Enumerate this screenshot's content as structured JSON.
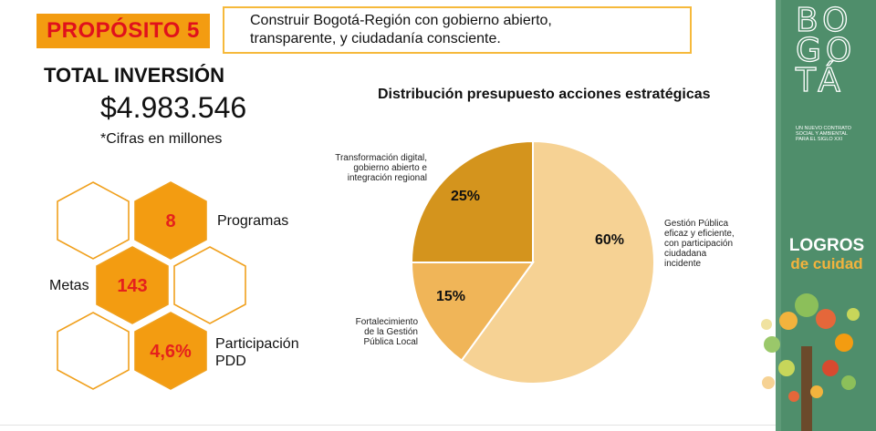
{
  "header": {
    "purpose_label": "PROPÓSITO 5",
    "purpose_text_line1": "Construir Bogotá-Región con gobierno abierto,",
    "purpose_text_line2": "transparente, y ciudadanía consciente."
  },
  "investment": {
    "title": "TOTAL INVERSIÓN",
    "value": "$4.983.546",
    "note": "*Cifras en millones"
  },
  "hex_stats": {
    "programs_value": "8",
    "programs_label": "Programas",
    "goals_value": "143",
    "goals_label": "Metas",
    "participation_value": "4,6%",
    "participation_label_line1": "Participación",
    "participation_label_line2": "PDD"
  },
  "sidebar": {
    "logo_letters": [
      "BO",
      "GO",
      "TÁ"
    ],
    "logo_sub": [
      "UN NUEVO CONTRATO",
      "SOCIAL Y AMBIENTAL",
      "PARA EL SIGLO XXI"
    ],
    "logros_line1": "LOGROS",
    "logros_line2": "de cuidad"
  },
  "colors": {
    "accent_orange": "#f39c11",
    "title_red": "#e0111c",
    "hex_value_red": "#e5211c",
    "sidebar_green": "#4f8e6b"
  },
  "chart_data": {
    "type": "pie",
    "title": "Distribución presupuesto acciones estratégicas",
    "slices": [
      {
        "label": [
          "Gestión Pública",
          "eficaz y eficiente,",
          "con participación",
          "ciudadana",
          "incidente"
        ],
        "value": 60,
        "data_label": "60%",
        "color": "#f6d294"
      },
      {
        "label": [
          "Fortalecimiento",
          "de la Gestión",
          "Pública Local"
        ],
        "value": 15,
        "data_label": "15%",
        "color": "#f0b558"
      },
      {
        "label": [
          "Transformación digital,",
          "gobierno abierto e",
          "integración regional"
        ],
        "value": 25,
        "data_label": "25%",
        "color": "#d4941d"
      }
    ],
    "legend": "none"
  }
}
